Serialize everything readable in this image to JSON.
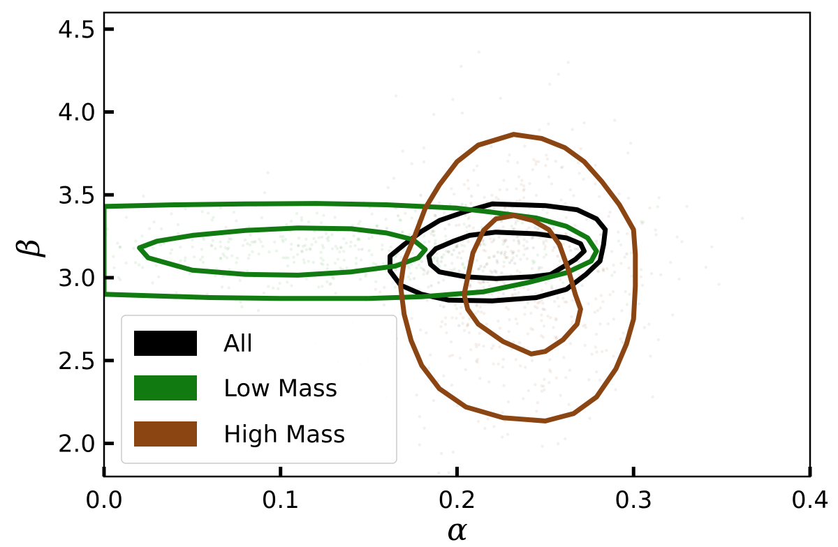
{
  "chart_data": {
    "type": "contour",
    "title": "",
    "xlabel": "α",
    "ylabel": "β",
    "xlim": [
      0.0,
      0.4
    ],
    "ylim": [
      1.8,
      4.6
    ],
    "xticks": [
      "0.0",
      "0.1",
      "0.2",
      "0.3",
      "0.4"
    ],
    "yticks": [
      "2.0",
      "2.5",
      "3.0",
      "3.5",
      "4.0",
      "4.5"
    ],
    "xtick_values": [
      0.0,
      0.1,
      0.2,
      0.3,
      0.4
    ],
    "ytick_values": [
      2.0,
      2.5,
      3.0,
      3.5,
      4.0,
      4.5
    ],
    "legend_position": "lower-left",
    "series": [
      {
        "name": "All",
        "color": "#000000",
        "contours": [
          [
            [
              0.222,
              3.275
            ],
            [
              0.245,
              3.265
            ],
            [
              0.262,
              3.24
            ],
            [
              0.27,
              3.205
            ],
            [
              0.272,
              3.16
            ],
            [
              0.267,
              3.11
            ],
            [
              0.253,
              3.02
            ],
            [
              0.242,
              3.005
            ],
            [
              0.222,
              2.995
            ],
            [
              0.205,
              3.005
            ],
            [
              0.19,
              3.035
            ],
            [
              0.185,
              3.08
            ],
            [
              0.184,
              3.13
            ],
            [
              0.188,
              3.175
            ],
            [
              0.198,
              3.22
            ],
            [
              0.207,
              3.255
            ]
          ],
          [
            [
              0.22,
              3.445
            ],
            [
              0.25,
              3.435
            ],
            [
              0.268,
              3.41
            ],
            [
              0.279,
              3.355
            ],
            [
              0.284,
              3.29
            ],
            [
              0.283,
              3.2
            ],
            [
              0.281,
              3.1
            ],
            [
              0.273,
              3.02
            ],
            [
              0.262,
              2.93
            ],
            [
              0.245,
              2.88
            ],
            [
              0.22,
              2.86
            ],
            [
              0.195,
              2.865
            ],
            [
              0.18,
              2.9
            ],
            [
              0.168,
              2.955
            ],
            [
              0.162,
              3.04
            ],
            [
              0.162,
              3.13
            ],
            [
              0.17,
              3.2
            ],
            [
              0.18,
              3.28
            ],
            [
              0.19,
              3.345
            ],
            [
              0.205,
              3.4
            ]
          ]
        ]
      },
      {
        "name": "Low Mass",
        "color": "#117a11",
        "contours": [
          [
            [
              0.02,
              3.18
            ],
            [
              0.03,
              3.22
            ],
            [
              0.05,
              3.255
            ],
            [
              0.08,
              3.285
            ],
            [
              0.11,
              3.3
            ],
            [
              0.14,
              3.295
            ],
            [
              0.16,
              3.27
            ],
            [
              0.175,
              3.23
            ],
            [
              0.182,
              3.17
            ],
            [
              0.178,
              3.12
            ],
            [
              0.165,
              3.07
            ],
            [
              0.14,
              3.035
            ],
            [
              0.11,
              3.015
            ],
            [
              0.08,
              3.02
            ],
            [
              0.05,
              3.045
            ],
            [
              0.025,
              3.12
            ]
          ],
          [
            [
              0.0,
              3.43
            ],
            [
              0.04,
              3.44
            ],
            [
              0.08,
              3.445
            ],
            [
              0.12,
              3.448
            ],
            [
              0.16,
              3.44
            ],
            [
              0.2,
              3.42
            ],
            [
              0.22,
              3.395
            ],
            [
              0.245,
              3.36
            ],
            [
              0.262,
              3.31
            ],
            [
              0.274,
              3.24
            ],
            [
              0.279,
              3.16
            ],
            [
              0.276,
              3.1
            ],
            [
              0.262,
              3.03
            ],
            [
              0.24,
              2.97
            ],
            [
              0.215,
              2.915
            ],
            [
              0.18,
              2.885
            ],
            [
              0.15,
              2.875
            ],
            [
              0.1,
              2.875
            ],
            [
              0.06,
              2.88
            ],
            [
              0.0,
              2.9
            ]
          ]
        ]
      },
      {
        "name": "High Mass",
        "color": "#8b4513",
        "contours": [
          [
            [
              0.232,
              3.375
            ],
            [
              0.243,
              3.345
            ],
            [
              0.252,
              3.29
            ],
            [
              0.258,
              3.2
            ],
            [
              0.263,
              3.05
            ],
            [
              0.267,
              2.9
            ],
            [
              0.27,
              2.81
            ],
            [
              0.268,
              2.72
            ],
            [
              0.26,
              2.625
            ],
            [
              0.25,
              2.555
            ],
            [
              0.242,
              2.54
            ],
            [
              0.226,
              2.615
            ],
            [
              0.212,
              2.72
            ],
            [
              0.206,
              2.81
            ],
            [
              0.204,
              2.9
            ],
            [
              0.206,
              3.0
            ],
            [
              0.209,
              3.15
            ],
            [
              0.215,
              3.285
            ],
            [
              0.222,
              3.355
            ]
          ],
          [
            [
              0.232,
              3.865
            ],
            [
              0.248,
              3.84
            ],
            [
              0.261,
              3.785
            ],
            [
              0.272,
              3.7
            ],
            [
              0.282,
              3.58
            ],
            [
              0.292,
              3.44
            ],
            [
              0.3,
              3.29
            ],
            [
              0.301,
              3.14
            ],
            [
              0.301,
              2.95
            ],
            [
              0.3,
              2.75
            ],
            [
              0.296,
              2.6
            ],
            [
              0.29,
              2.45
            ],
            [
              0.279,
              2.28
            ],
            [
              0.266,
              2.18
            ],
            [
              0.25,
              2.135
            ],
            [
              0.226,
              2.155
            ],
            [
              0.205,
              2.22
            ],
            [
              0.19,
              2.33
            ],
            [
              0.18,
              2.47
            ],
            [
              0.174,
              2.62
            ],
            [
              0.17,
              2.78
            ],
            [
              0.168,
              2.95
            ],
            [
              0.17,
              3.1
            ],
            [
              0.176,
              3.25
            ],
            [
              0.182,
              3.42
            ],
            [
              0.19,
              3.56
            ],
            [
              0.2,
              3.7
            ],
            [
              0.212,
              3.8
            ]
          ]
        ]
      }
    ]
  }
}
